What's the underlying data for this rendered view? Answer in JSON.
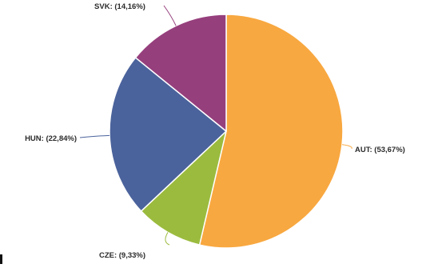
{
  "chart_data": {
    "type": "pie",
    "start_angle_deg": 0,
    "direction": "clockwise",
    "slices": [
      {
        "name": "AUT",
        "value": 53.67,
        "label": "AUT: (53,67%)",
        "color": "#f8a840"
      },
      {
        "name": "CZE",
        "value": 9.33,
        "label": "CZE: (9,33%)",
        "color": "#9bbb3e"
      },
      {
        "name": "HUN",
        "value": 22.84,
        "label": "HUN: (22,84%)",
        "color": "#4b639c"
      },
      {
        "name": "SVK",
        "value": 14.16,
        "label": "SVK: (14,16%)",
        "color": "#963f7d"
      }
    ]
  }
}
